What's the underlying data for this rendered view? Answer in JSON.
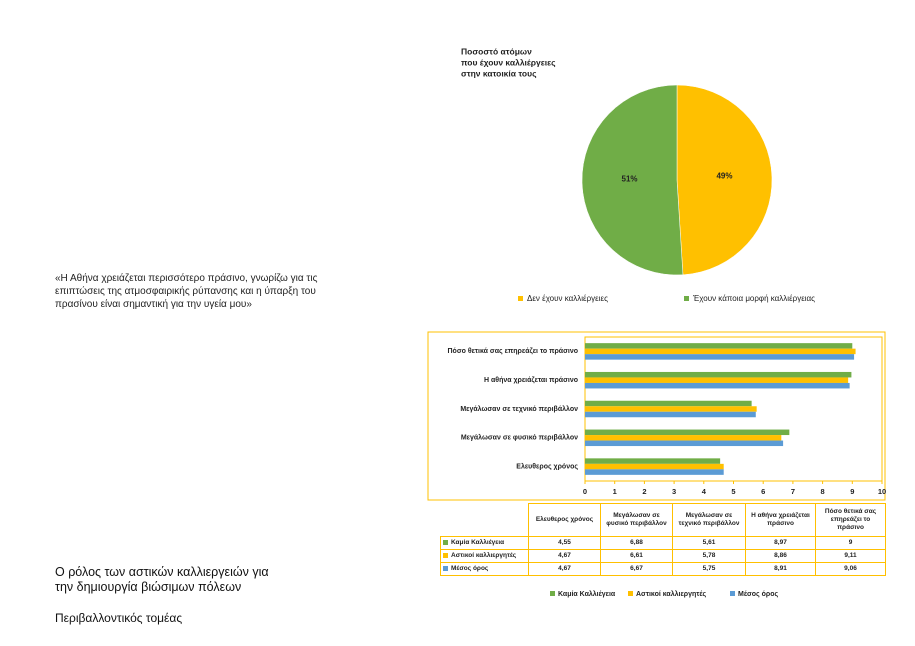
{
  "quote": [
    "«Η Αθήνα χρειάζεται περισσότερο πράσινο, γνωρίζω για τις",
    "επιπτώσεις της ατμοσφαιρικής ρύπανσης και η ύπαρξη του",
    "πρασίνου είναι σημαντική για την υγεία μου»"
  ],
  "title": [
    "Ο ρόλος των αστικών καλλιεργειών για",
    "την δημιουργία βιώσιμων πόλεων"
  ],
  "subtitle": "Περιβαλλοντικός τομέας",
  "chart_data": [
    {
      "type": "pie",
      "title": [
        "Ποσοστό ατόμων",
        "που έχουν καλλιέργειες",
        "στην κατοικία τους"
      ],
      "categories": [
        "Δεν έχουν καλλιέργειες",
        "Έχουν κάποια μορφή καλλιέργειας"
      ],
      "values": [
        49,
        51
      ],
      "value_labels": [
        "49%",
        "51%"
      ],
      "colors": [
        "#ffc000",
        "#70ad47"
      ],
      "legend": "bottom"
    },
    {
      "type": "bar",
      "orientation": "horizontal",
      "categories": [
        "Ελευθερος χρόνος",
        "Μεγάλωσαν σε φυσικό περιβάλλον",
        "Μεγάλωσαν σε τεχνικό περιβάλλον",
        "Η αθήνα χρειάζεται πράσινο",
        "Πόσο θετικά σας επηρεάζει το πράσινο"
      ],
      "series": [
        {
          "name": "Καμία Καλλιέγεια",
          "color": "#70ad47",
          "values": [
            4.55,
            6.88,
            5.61,
            8.97,
            9
          ],
          "value_labels": [
            "4,55",
            "6,88",
            "5,61",
            "8,97",
            "9"
          ]
        },
        {
          "name": "Αστικοί καλλιεργητές",
          "color": "#ffc000",
          "values": [
            4.67,
            6.61,
            5.78,
            8.86,
            9.11
          ],
          "value_labels": [
            "4,67",
            "6,61",
            "5,78",
            "8,86",
            "9,11"
          ]
        },
        {
          "name": "Μέσος όρος",
          "color": "#5b9bd5",
          "values": [
            4.67,
            6.67,
            5.75,
            8.91,
            9.06
          ],
          "value_labels": [
            "4,67",
            "6,67",
            "5,75",
            "8,91",
            "9,06"
          ]
        }
      ],
      "xlim": [
        0,
        10
      ],
      "xticks": [
        0,
        1,
        2,
        3,
        4,
        5,
        6,
        7,
        8,
        9,
        10
      ],
      "legend": "bottom",
      "data_table": true
    }
  ]
}
